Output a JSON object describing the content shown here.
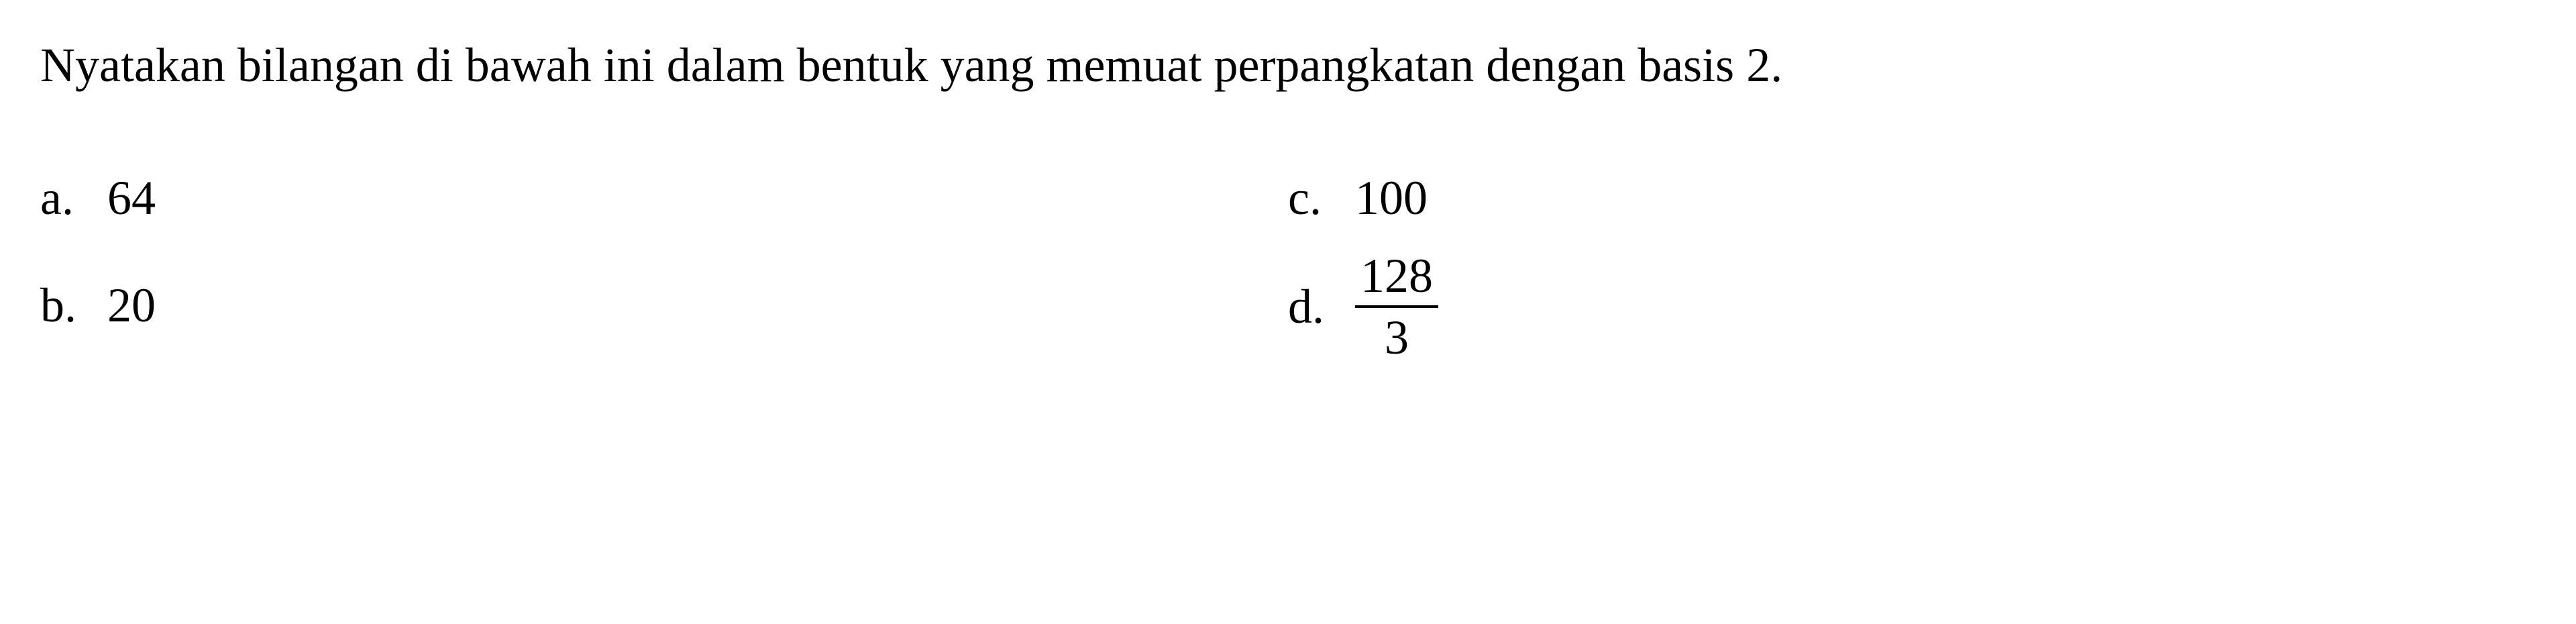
{
  "question": {
    "text": "Nyatakan bilangan di bawah ini dalam bentuk yang memuat perpangkatan dengan basis 2.",
    "font_size": 72,
    "color": "#000000"
  },
  "options": {
    "a": {
      "letter": "a.",
      "value": "64",
      "type": "simple"
    },
    "b": {
      "letter": "b.",
      "value": "20",
      "type": "simple"
    },
    "c": {
      "letter": "c.",
      "value": "100",
      "type": "simple"
    },
    "d": {
      "letter": "d.",
      "numerator": "128",
      "denominator": "3",
      "type": "fraction"
    }
  },
  "styling": {
    "background_color": "#ffffff",
    "text_color": "#000000",
    "font_family": "Times New Roman",
    "option_font_size": 72,
    "line_height": 1.6
  }
}
